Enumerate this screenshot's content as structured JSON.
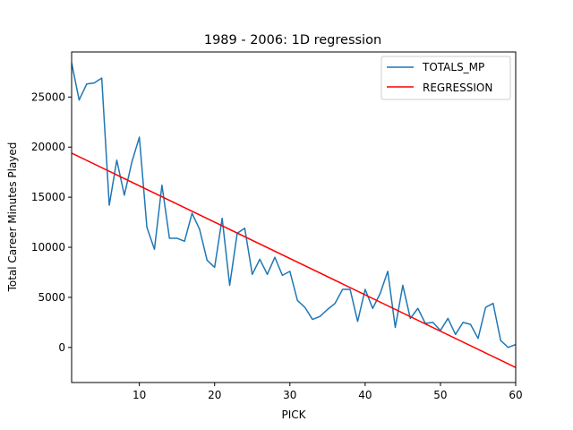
{
  "chart_data": {
    "type": "line",
    "title": "1989 - 2006: 1D regression",
    "xlabel": "PICK",
    "ylabel": "Total Career Minutes Played",
    "xlim": [
      1,
      60
    ],
    "ylim": [
      -3500,
      29500
    ],
    "xticks": [
      10,
      20,
      30,
      40,
      50,
      60
    ],
    "yticks": [
      0,
      5000,
      10000,
      15000,
      20000,
      25000
    ],
    "grid": false,
    "legend_position": "top-right",
    "x": [
      1,
      2,
      3,
      4,
      5,
      6,
      7,
      8,
      9,
      10,
      11,
      12,
      13,
      14,
      15,
      16,
      17,
      18,
      19,
      20,
      21,
      22,
      23,
      24,
      25,
      26,
      27,
      28,
      29,
      30,
      31,
      32,
      33,
      34,
      35,
      36,
      37,
      38,
      39,
      40,
      41,
      42,
      43,
      44,
      45,
      46,
      47,
      48,
      49,
      50,
      51,
      52,
      53,
      54,
      55,
      56,
      57,
      58,
      59,
      60
    ],
    "series": [
      {
        "name": "TOTALS_MP",
        "color": "#1f77b4",
        "values": [
          28400,
          24700,
          26300,
          26400,
          26900,
          14200,
          18700,
          15200,
          18500,
          21000,
          12000,
          9800,
          16200,
          10900,
          10900,
          10600,
          13400,
          11800,
          8700,
          8000,
          12900,
          6200,
          11400,
          11900,
          7300,
          8800,
          7300,
          9000,
          7200,
          7600,
          4700,
          4000,
          2800,
          3100,
          3800,
          4400,
          5800,
          5800,
          2600,
          5800,
          3900,
          5400,
          7600,
          2000,
          6200,
          2900,
          3900,
          2400,
          2500,
          1700,
          2900,
          1300,
          2500,
          2300,
          900,
          4000,
          4400,
          700,
          0,
          300
        ]
      },
      {
        "name": "REGRESSION",
        "color": "#ff0000",
        "values_endpoints": [
          [
            1,
            19400
          ],
          [
            60,
            -2000
          ]
        ]
      }
    ]
  }
}
